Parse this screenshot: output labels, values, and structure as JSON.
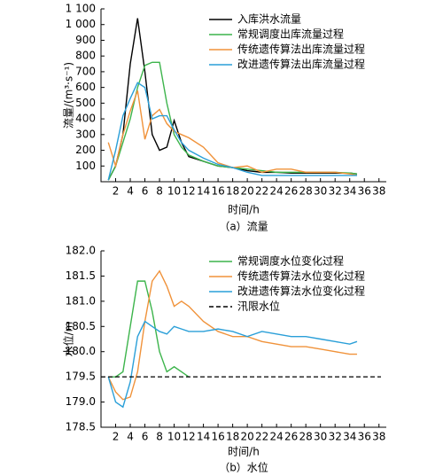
{
  "chart_data": [
    {
      "type": "line",
      "caption": "（a）流量",
      "xlabel": "时间/h",
      "ylabel": "流量/(m³·s⁻¹)",
      "x": [
        1,
        2,
        3,
        4,
        5,
        6,
        7,
        8,
        9,
        10,
        11,
        12,
        14,
        16,
        18,
        20,
        22,
        24,
        26,
        28,
        30,
        32,
        34,
        35
      ],
      "xlim": [
        0,
        39
      ],
      "xticks": [
        2,
        4,
        6,
        8,
        10,
        12,
        14,
        16,
        18,
        20,
        22,
        24,
        26,
        28,
        30,
        32,
        34,
        36,
        38
      ],
      "ylim": [
        0,
        1100
      ],
      "yticks": [
        100,
        200,
        300,
        400,
        500,
        600,
        700,
        800,
        900,
        {
          "value": 1000,
          "label": "1 000"
        },
        {
          "value": 1100,
          "label": "1 100"
        }
      ],
      "legend": "upper right",
      "series": [
        {
          "name": "入库洪水流量",
          "color": "#000000",
          "values": [
            10,
            100,
            300,
            750,
            1040,
            700,
            300,
            200,
            220,
            390,
            250,
            160,
            130,
            100,
            90,
            70,
            60,
            60,
            55,
            55,
            55,
            55,
            55,
            50
          ]
        },
        {
          "name": "常规调度出库流量过程",
          "color": "#3cb44b",
          "values": [
            10,
            100,
            250,
            400,
            600,
            740,
            760,
            760,
            500,
            300,
            220,
            170,
            130,
            100,
            90,
            80,
            70,
            60,
            60,
            60,
            60,
            60,
            55,
            50
          ]
        },
        {
          "name": "传统遗传算法出库流量过程",
          "color": "#f0923a",
          "values": [
            250,
            100,
            300,
            450,
            580,
            270,
            420,
            460,
            370,
            320,
            300,
            280,
            220,
            120,
            90,
            100,
            60,
            80,
            80,
            60,
            60,
            60,
            50,
            40
          ]
        },
        {
          "name": "改进遗传算法出库流量过程",
          "color": "#2a9fd8",
          "values": [
            10,
            200,
            420,
            530,
            630,
            600,
            400,
            420,
            420,
            330,
            250,
            200,
            150,
            110,
            90,
            60,
            40,
            40,
            40,
            40,
            40,
            40,
            40,
            40
          ]
        }
      ]
    },
    {
      "type": "line",
      "caption": "（b）水位",
      "xlabel": "时间/h",
      "ylabel": "水位/m",
      "x": [
        1,
        2,
        3,
        4,
        5,
        6,
        7,
        8,
        9,
        10,
        11,
        12,
        14,
        16,
        18,
        20,
        22,
        24,
        26,
        28,
        30,
        32,
        34,
        35
      ],
      "xlim": [
        0,
        39
      ],
      "xticks": [
        2,
        4,
        6,
        8,
        10,
        12,
        14,
        16,
        18,
        20,
        22,
        24,
        26,
        28,
        30,
        32,
        34,
        36,
        38
      ],
      "ylim": [
        178.5,
        182
      ],
      "yticks": [
        178.5,
        {
          "value": 179,
          "label": "179.0"
        },
        179.5,
        {
          "value": 180,
          "label": "180.0"
        },
        180.5,
        {
          "value": 181,
          "label": "181.0"
        },
        181.5,
        {
          "value": 182,
          "label": "182.0"
        }
      ],
      "legend": "upper right",
      "series": [
        {
          "name": "常规调度水位变化过程",
          "color": "#3cb44b",
          "values": [
            179.5,
            179.5,
            179.6,
            180.5,
            181.4,
            181.4,
            180.8,
            180.0,
            179.6,
            179.7,
            179.6,
            179.5,
            null,
            null,
            null,
            null,
            null,
            null,
            null,
            null,
            null,
            null,
            null,
            null
          ]
        },
        {
          "name": "传统遗传算法水位变化过程",
          "color": "#f0923a",
          "values": [
            179.5,
            179.2,
            179.05,
            179.1,
            179.6,
            180.6,
            181.4,
            181.6,
            181.3,
            180.9,
            181.0,
            180.9,
            180.6,
            180.4,
            180.3,
            180.3,
            180.2,
            180.15,
            180.1,
            180.1,
            180.05,
            180.0,
            179.95,
            179.95
          ]
        },
        {
          "name": "改进遗传算法水位变化过程",
          "color": "#2a9fd8",
          "values": [
            179.5,
            179.0,
            178.9,
            179.4,
            180.3,
            180.6,
            180.5,
            180.4,
            180.35,
            180.5,
            180.45,
            180.4,
            180.4,
            180.45,
            180.4,
            180.3,
            180.4,
            180.35,
            180.3,
            180.3,
            180.25,
            180.2,
            180.15,
            180.2
          ]
        }
      ],
      "hline": {
        "name": "汛限水位",
        "value": 179.5,
        "color": "#000000",
        "dash": true
      }
    }
  ]
}
